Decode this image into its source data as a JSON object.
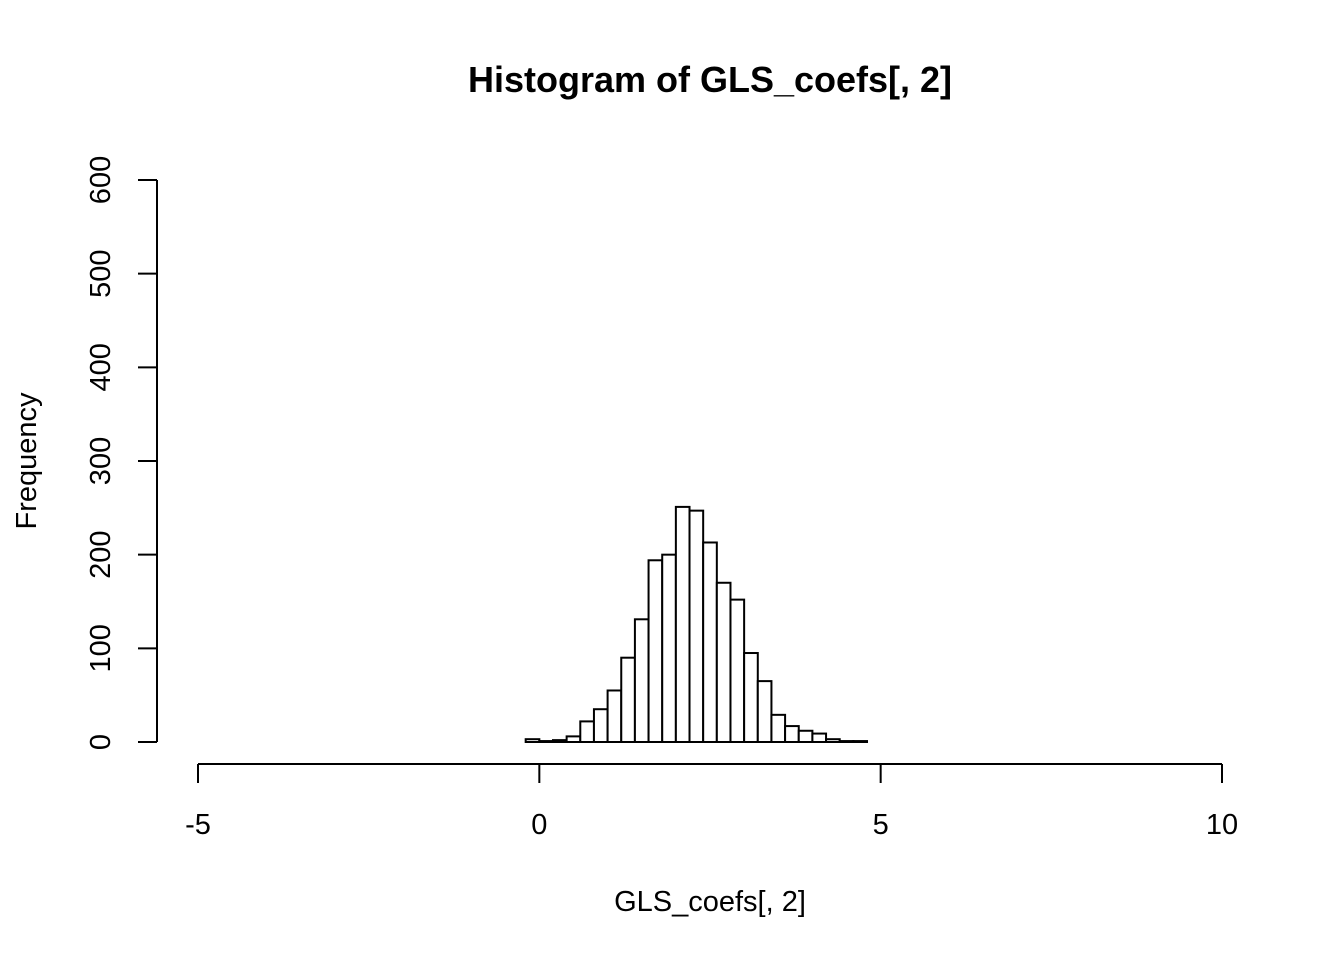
{
  "chart_data": {
    "type": "bar",
    "title": "Histogram of GLS_coefs[, 2]",
    "xlabel": "GLS_coefs[, 2]",
    "ylabel": "Frequency",
    "xlim": [
      -5,
      10
    ],
    "ylim": [
      0,
      600
    ],
    "x_ticks": [
      "-5",
      "0",
      "5",
      "10"
    ],
    "y_ticks": [
      "0",
      "100",
      "200",
      "300",
      "400",
      "500",
      "600"
    ],
    "bin_width": 0.2,
    "bins": [
      {
        "x0": -0.2,
        "x1": 0.0,
        "count": 3
      },
      {
        "x0": 0.0,
        "x1": 0.2,
        "count": 1
      },
      {
        "x0": 0.2,
        "x1": 0.4,
        "count": 2
      },
      {
        "x0": 0.4,
        "x1": 0.6,
        "count": 6
      },
      {
        "x0": 0.6,
        "x1": 0.8,
        "count": 22
      },
      {
        "x0": 0.8,
        "x1": 1.0,
        "count": 35
      },
      {
        "x0": 1.0,
        "x1": 1.2,
        "count": 55
      },
      {
        "x0": 1.2,
        "x1": 1.4,
        "count": 90
      },
      {
        "x0": 1.4,
        "x1": 1.6,
        "count": 131
      },
      {
        "x0": 1.6,
        "x1": 1.8,
        "count": 194
      },
      {
        "x0": 1.8,
        "x1": 2.0,
        "count": 200
      },
      {
        "x0": 2.0,
        "x1": 2.2,
        "count": 251
      },
      {
        "x0": 2.2,
        "x1": 2.4,
        "count": 247
      },
      {
        "x0": 2.4,
        "x1": 2.6,
        "count": 213
      },
      {
        "x0": 2.6,
        "x1": 2.8,
        "count": 170
      },
      {
        "x0": 2.8,
        "x1": 3.0,
        "count": 152
      },
      {
        "x0": 3.0,
        "x1": 3.2,
        "count": 95
      },
      {
        "x0": 3.2,
        "x1": 3.4,
        "count": 65
      },
      {
        "x0": 3.4,
        "x1": 3.6,
        "count": 29
      },
      {
        "x0": 3.6,
        "x1": 3.8,
        "count": 17
      },
      {
        "x0": 3.8,
        "x1": 4.0,
        "count": 12
      },
      {
        "x0": 4.0,
        "x1": 4.2,
        "count": 9
      },
      {
        "x0": 4.2,
        "x1": 4.4,
        "count": 3
      },
      {
        "x0": 4.4,
        "x1": 4.6,
        "count": 1
      },
      {
        "x0": 4.6,
        "x1": 4.8,
        "count": 1
      }
    ],
    "grid": false,
    "legend": "none"
  }
}
